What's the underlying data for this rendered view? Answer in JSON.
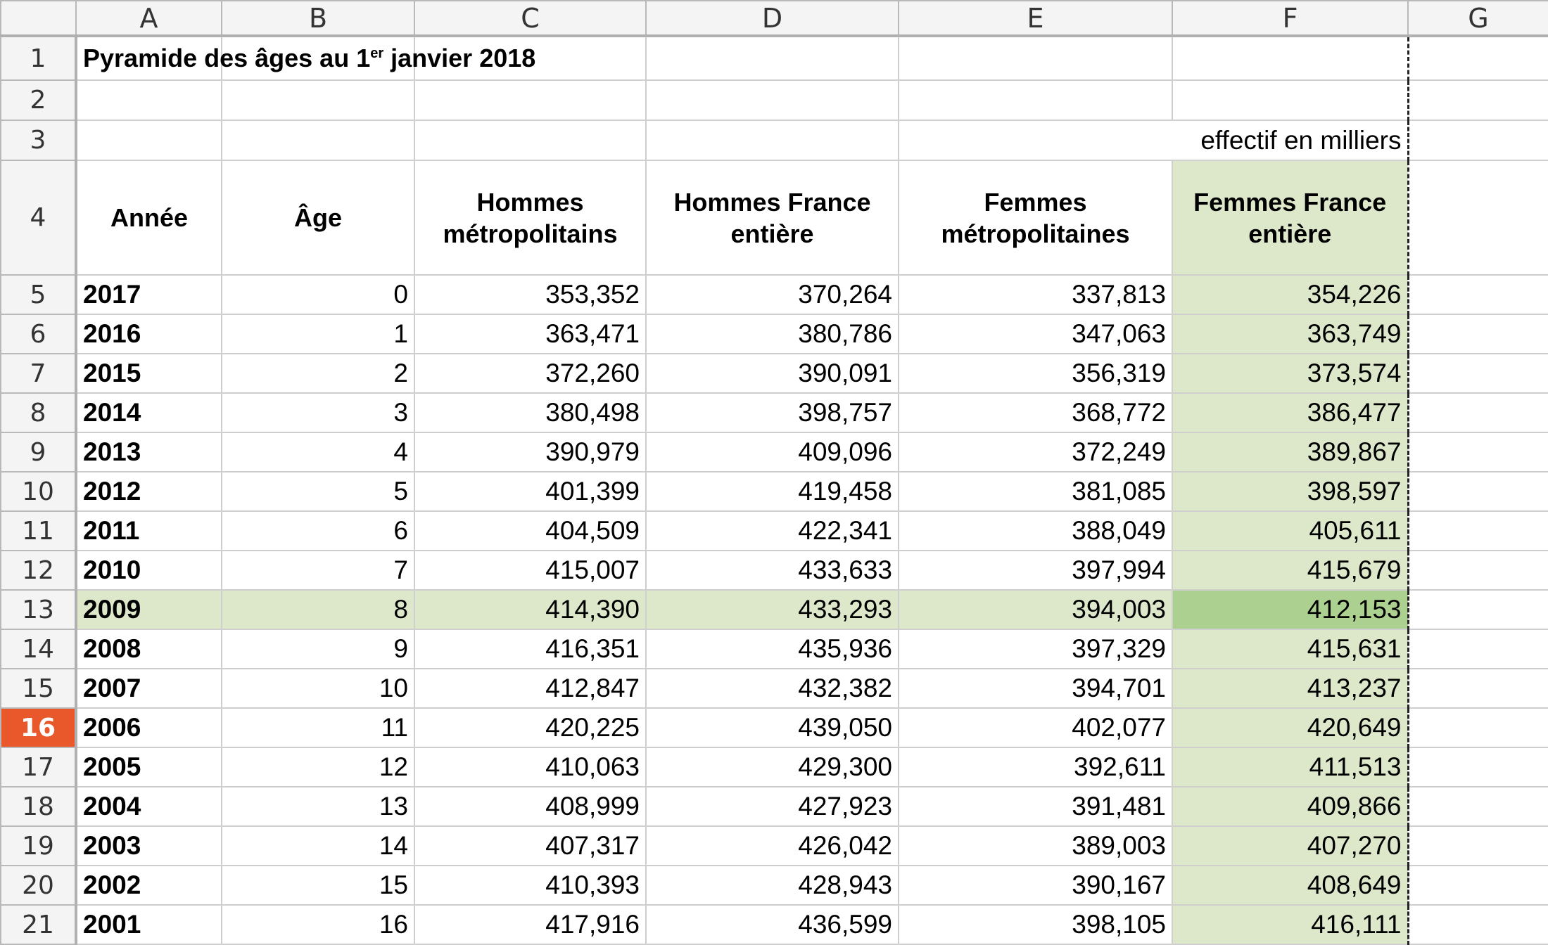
{
  "columns": [
    "A",
    "B",
    "C",
    "D",
    "E",
    "F",
    "G"
  ],
  "title": {
    "prefix": "Pyramide des âges au 1",
    "sup": "er",
    "suffix": " janvier 2018"
  },
  "unit_note": "effectif en milliers",
  "headers": [
    "Année",
    "Âge",
    "Hommes métropolitains",
    "Hommes France entière",
    "Femmes métropolitaines",
    "Femmes France entière"
  ],
  "active_row": 16,
  "highlighted_row": 13,
  "colors": {
    "active_row_header": "#e8582a",
    "highlight": "#dde8cb",
    "highlight_cell": "#acd08f"
  },
  "rows": [
    {
      "n": 5,
      "year": "2017",
      "age": "0",
      "hm": "353,352",
      "hf": "370,264",
      "fm": "337,813",
      "ff": "354,226"
    },
    {
      "n": 6,
      "year": "2016",
      "age": "1",
      "hm": "363,471",
      "hf": "380,786",
      "fm": "347,063",
      "ff": "363,749"
    },
    {
      "n": 7,
      "year": "2015",
      "age": "2",
      "hm": "372,260",
      "hf": "390,091",
      "fm": "356,319",
      "ff": "373,574"
    },
    {
      "n": 8,
      "year": "2014",
      "age": "3",
      "hm": "380,498",
      "hf": "398,757",
      "fm": "368,772",
      "ff": "386,477"
    },
    {
      "n": 9,
      "year": "2013",
      "age": "4",
      "hm": "390,979",
      "hf": "409,096",
      "fm": "372,249",
      "ff": "389,867"
    },
    {
      "n": 10,
      "year": "2012",
      "age": "5",
      "hm": "401,399",
      "hf": "419,458",
      "fm": "381,085",
      "ff": "398,597"
    },
    {
      "n": 11,
      "year": "2011",
      "age": "6",
      "hm": "404,509",
      "hf": "422,341",
      "fm": "388,049",
      "ff": "405,611"
    },
    {
      "n": 12,
      "year": "2010",
      "age": "7",
      "hm": "415,007",
      "hf": "433,633",
      "fm": "397,994",
      "ff": "415,679"
    },
    {
      "n": 13,
      "year": "2009",
      "age": "8",
      "hm": "414,390",
      "hf": "433,293",
      "fm": "394,003",
      "ff": "412,153"
    },
    {
      "n": 14,
      "year": "2008",
      "age": "9",
      "hm": "416,351",
      "hf": "435,936",
      "fm": "397,329",
      "ff": "415,631"
    },
    {
      "n": 15,
      "year": "2007",
      "age": "10",
      "hm": "412,847",
      "hf": "432,382",
      "fm": "394,701",
      "ff": "413,237"
    },
    {
      "n": 16,
      "year": "2006",
      "age": "11",
      "hm": "420,225",
      "hf": "439,050",
      "fm": "402,077",
      "ff": "420,649"
    },
    {
      "n": 17,
      "year": "2005",
      "age": "12",
      "hm": "410,063",
      "hf": "429,300",
      "fm": "392,611",
      "ff": "411,513"
    },
    {
      "n": 18,
      "year": "2004",
      "age": "13",
      "hm": "408,999",
      "hf": "427,923",
      "fm": "391,481",
      "ff": "409,866"
    },
    {
      "n": 19,
      "year": "2003",
      "age": "14",
      "hm": "407,317",
      "hf": "426,042",
      "fm": "389,003",
      "ff": "407,270"
    },
    {
      "n": 20,
      "year": "2002",
      "age": "15",
      "hm": "410,393",
      "hf": "428,943",
      "fm": "390,167",
      "ff": "408,649"
    },
    {
      "n": 21,
      "year": "2001",
      "age": "16",
      "hm": "417,916",
      "hf": "436,599",
      "fm": "398,105",
      "ff": "416,111"
    }
  ],
  "row_labels": [
    "1",
    "2",
    "3",
    "4"
  ]
}
